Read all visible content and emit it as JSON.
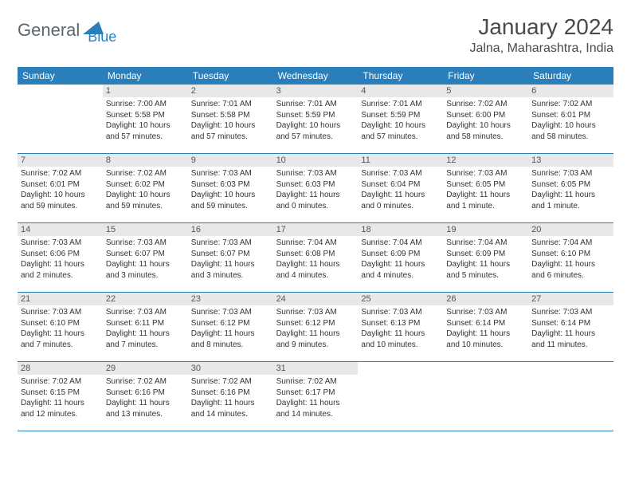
{
  "logo": {
    "text1": "General",
    "text2": "Blue"
  },
  "title": "January 2024",
  "location": "Jalna, Maharashtra, India",
  "colors": {
    "header_bg": "#2a7fba",
    "header_text": "#ffffff",
    "daynum_bg": "#e8e8e8",
    "body_bg": "#ffffff",
    "text": "#333333",
    "border": "#2a7fba"
  },
  "typography": {
    "title_fontsize": 28,
    "location_fontsize": 16,
    "weekday_fontsize": 12,
    "daynum_fontsize": 11,
    "body_fontsize": 10
  },
  "weekdays": [
    "Sunday",
    "Monday",
    "Tuesday",
    "Wednesday",
    "Thursday",
    "Friday",
    "Saturday"
  ],
  "weeks": [
    [
      null,
      {
        "n": "1",
        "sr": "Sunrise: 7:00 AM",
        "ss": "Sunset: 5:58 PM",
        "dl": "Daylight: 10 hours and 57 minutes."
      },
      {
        "n": "2",
        "sr": "Sunrise: 7:01 AM",
        "ss": "Sunset: 5:58 PM",
        "dl": "Daylight: 10 hours and 57 minutes."
      },
      {
        "n": "3",
        "sr": "Sunrise: 7:01 AM",
        "ss": "Sunset: 5:59 PM",
        "dl": "Daylight: 10 hours and 57 minutes."
      },
      {
        "n": "4",
        "sr": "Sunrise: 7:01 AM",
        "ss": "Sunset: 5:59 PM",
        "dl": "Daylight: 10 hours and 57 minutes."
      },
      {
        "n": "5",
        "sr": "Sunrise: 7:02 AM",
        "ss": "Sunset: 6:00 PM",
        "dl": "Daylight: 10 hours and 58 minutes."
      },
      {
        "n": "6",
        "sr": "Sunrise: 7:02 AM",
        "ss": "Sunset: 6:01 PM",
        "dl": "Daylight: 10 hours and 58 minutes."
      }
    ],
    [
      {
        "n": "7",
        "sr": "Sunrise: 7:02 AM",
        "ss": "Sunset: 6:01 PM",
        "dl": "Daylight: 10 hours and 59 minutes."
      },
      {
        "n": "8",
        "sr": "Sunrise: 7:02 AM",
        "ss": "Sunset: 6:02 PM",
        "dl": "Daylight: 10 hours and 59 minutes."
      },
      {
        "n": "9",
        "sr": "Sunrise: 7:03 AM",
        "ss": "Sunset: 6:03 PM",
        "dl": "Daylight: 10 hours and 59 minutes."
      },
      {
        "n": "10",
        "sr": "Sunrise: 7:03 AM",
        "ss": "Sunset: 6:03 PM",
        "dl": "Daylight: 11 hours and 0 minutes."
      },
      {
        "n": "11",
        "sr": "Sunrise: 7:03 AM",
        "ss": "Sunset: 6:04 PM",
        "dl": "Daylight: 11 hours and 0 minutes."
      },
      {
        "n": "12",
        "sr": "Sunrise: 7:03 AM",
        "ss": "Sunset: 6:05 PM",
        "dl": "Daylight: 11 hours and 1 minute."
      },
      {
        "n": "13",
        "sr": "Sunrise: 7:03 AM",
        "ss": "Sunset: 6:05 PM",
        "dl": "Daylight: 11 hours and 1 minute."
      }
    ],
    [
      {
        "n": "14",
        "sr": "Sunrise: 7:03 AM",
        "ss": "Sunset: 6:06 PM",
        "dl": "Daylight: 11 hours and 2 minutes."
      },
      {
        "n": "15",
        "sr": "Sunrise: 7:03 AM",
        "ss": "Sunset: 6:07 PM",
        "dl": "Daylight: 11 hours and 3 minutes."
      },
      {
        "n": "16",
        "sr": "Sunrise: 7:03 AM",
        "ss": "Sunset: 6:07 PM",
        "dl": "Daylight: 11 hours and 3 minutes."
      },
      {
        "n": "17",
        "sr": "Sunrise: 7:04 AM",
        "ss": "Sunset: 6:08 PM",
        "dl": "Daylight: 11 hours and 4 minutes."
      },
      {
        "n": "18",
        "sr": "Sunrise: 7:04 AM",
        "ss": "Sunset: 6:09 PM",
        "dl": "Daylight: 11 hours and 4 minutes."
      },
      {
        "n": "19",
        "sr": "Sunrise: 7:04 AM",
        "ss": "Sunset: 6:09 PM",
        "dl": "Daylight: 11 hours and 5 minutes."
      },
      {
        "n": "20",
        "sr": "Sunrise: 7:04 AM",
        "ss": "Sunset: 6:10 PM",
        "dl": "Daylight: 11 hours and 6 minutes."
      }
    ],
    [
      {
        "n": "21",
        "sr": "Sunrise: 7:03 AM",
        "ss": "Sunset: 6:10 PM",
        "dl": "Daylight: 11 hours and 7 minutes."
      },
      {
        "n": "22",
        "sr": "Sunrise: 7:03 AM",
        "ss": "Sunset: 6:11 PM",
        "dl": "Daylight: 11 hours and 7 minutes."
      },
      {
        "n": "23",
        "sr": "Sunrise: 7:03 AM",
        "ss": "Sunset: 6:12 PM",
        "dl": "Daylight: 11 hours and 8 minutes."
      },
      {
        "n": "24",
        "sr": "Sunrise: 7:03 AM",
        "ss": "Sunset: 6:12 PM",
        "dl": "Daylight: 11 hours and 9 minutes."
      },
      {
        "n": "25",
        "sr": "Sunrise: 7:03 AM",
        "ss": "Sunset: 6:13 PM",
        "dl": "Daylight: 11 hours and 10 minutes."
      },
      {
        "n": "26",
        "sr": "Sunrise: 7:03 AM",
        "ss": "Sunset: 6:14 PM",
        "dl": "Daylight: 11 hours and 10 minutes."
      },
      {
        "n": "27",
        "sr": "Sunrise: 7:03 AM",
        "ss": "Sunset: 6:14 PM",
        "dl": "Daylight: 11 hours and 11 minutes."
      }
    ],
    [
      {
        "n": "28",
        "sr": "Sunrise: 7:02 AM",
        "ss": "Sunset: 6:15 PM",
        "dl": "Daylight: 11 hours and 12 minutes."
      },
      {
        "n": "29",
        "sr": "Sunrise: 7:02 AM",
        "ss": "Sunset: 6:16 PM",
        "dl": "Daylight: 11 hours and 13 minutes."
      },
      {
        "n": "30",
        "sr": "Sunrise: 7:02 AM",
        "ss": "Sunset: 6:16 PM",
        "dl": "Daylight: 11 hours and 14 minutes."
      },
      {
        "n": "31",
        "sr": "Sunrise: 7:02 AM",
        "ss": "Sunset: 6:17 PM",
        "dl": "Daylight: 11 hours and 14 minutes."
      },
      null,
      null,
      null
    ]
  ]
}
